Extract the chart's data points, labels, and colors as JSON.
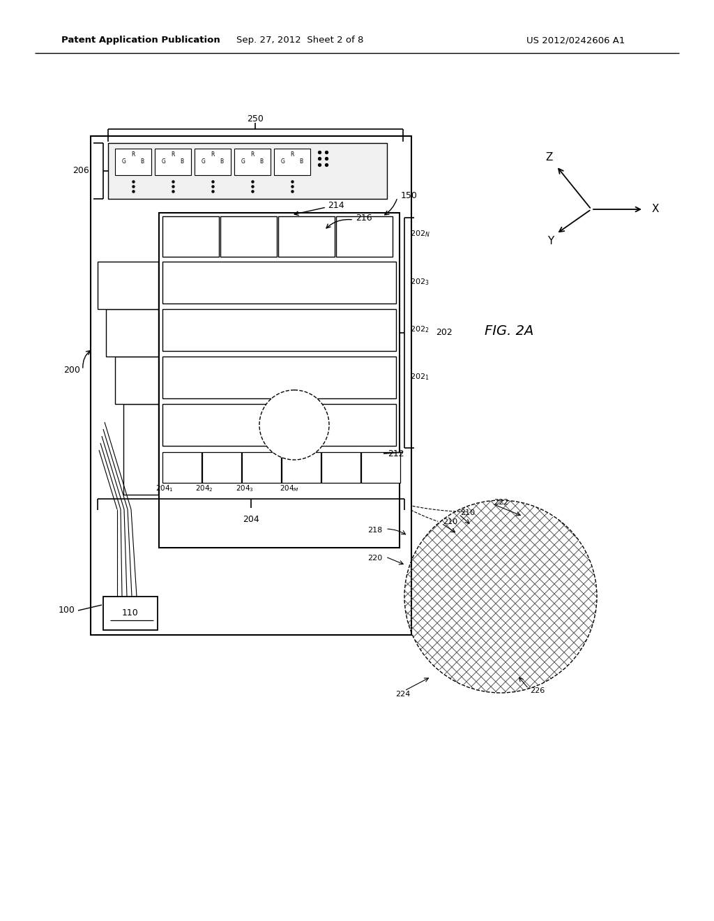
{
  "bg_color": "#ffffff",
  "lc": "#000000",
  "header_left": "Patent Application Publication",
  "header_center": "Sep. 27, 2012  Sheet 2 of 8",
  "header_right": "US 2012/0242606 A1"
}
